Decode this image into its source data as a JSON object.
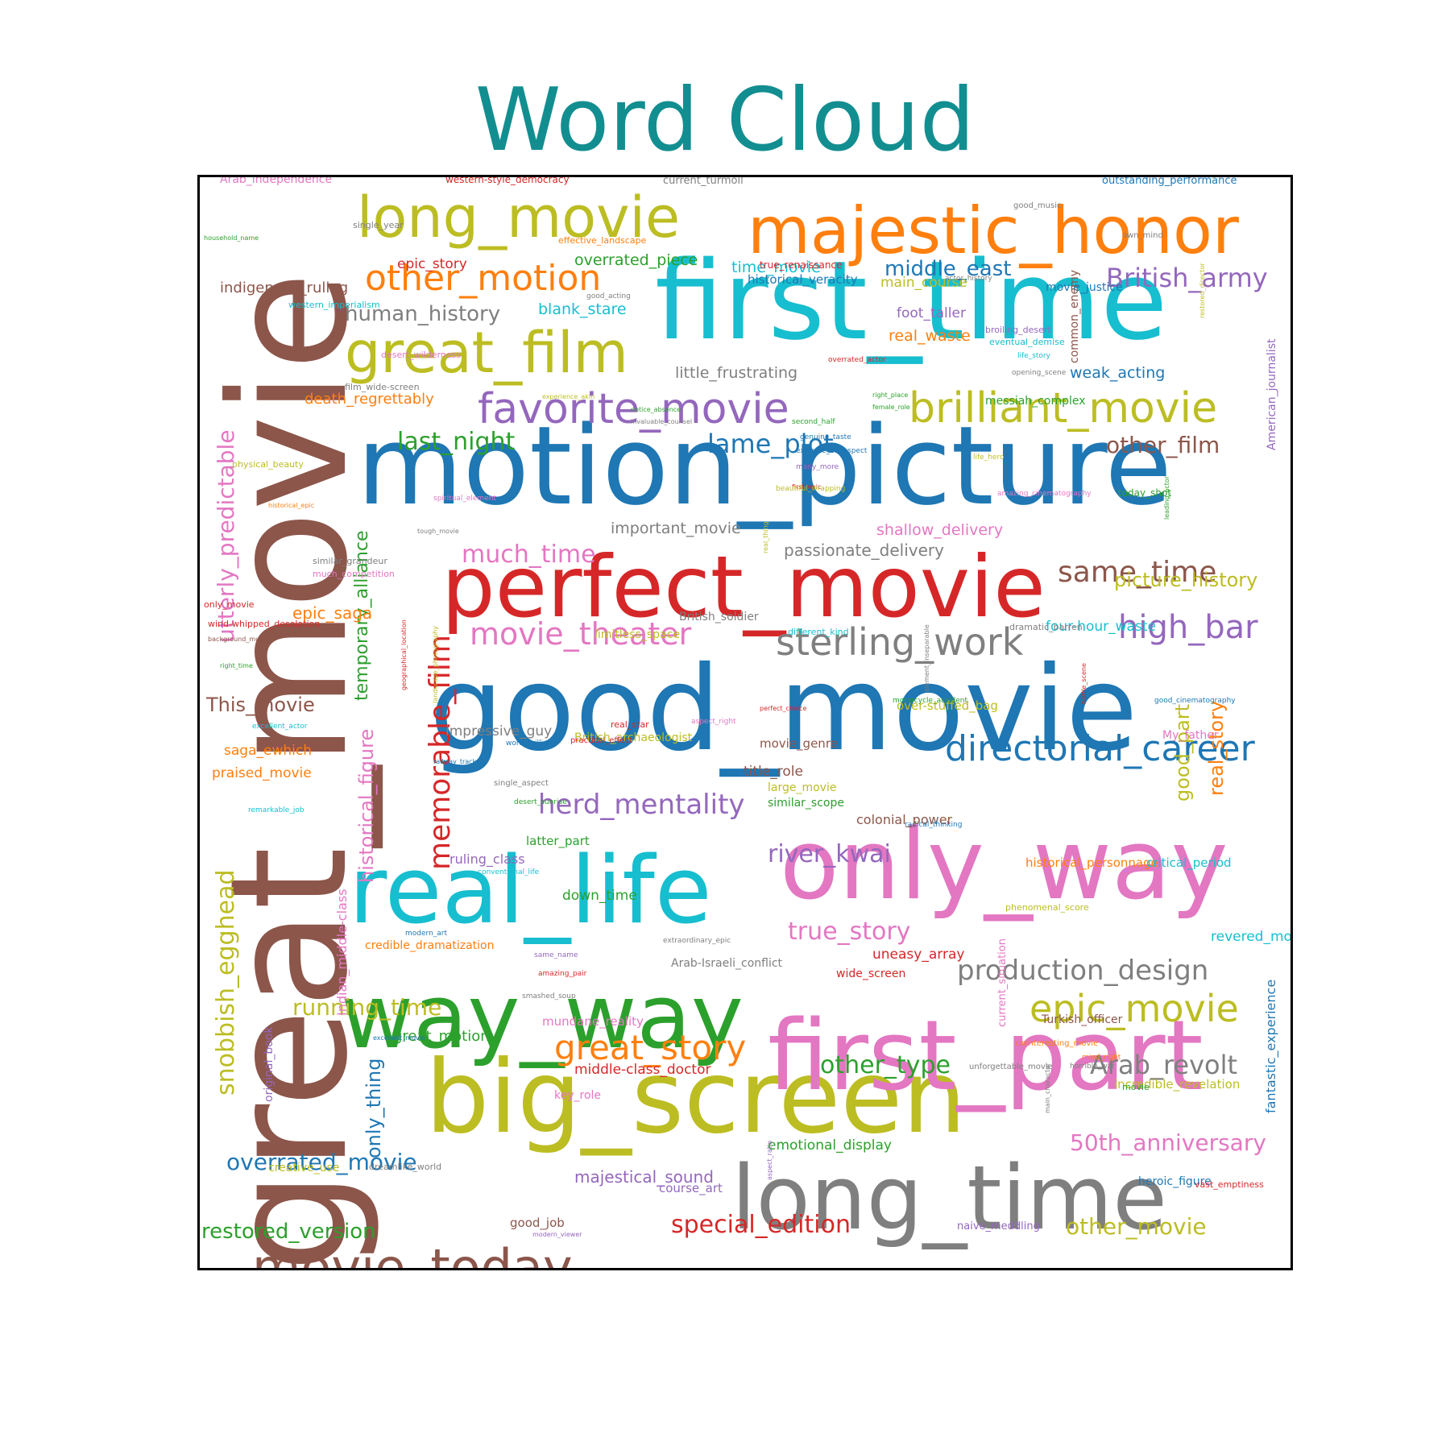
{
  "title": "Word Cloud",
  "colors": {
    "title": "#128E90",
    "frame": "#000000",
    "palette": {
      "blue": "#1F77B4",
      "orange": "#FF7F0E",
      "green": "#2CA02C",
      "red": "#D62728",
      "purple": "#9467BD",
      "brown": "#8C564B",
      "pink": "#E377C2",
      "gray": "#7F7F7F",
      "olive": "#BCBD22",
      "cyan": "#17BECF"
    }
  },
  "chart_data": {
    "type": "word_cloud",
    "words": [
      {
        "text": "great_movie",
        "color": "brown"
      },
      {
        "text": "motion_picture",
        "color": "blue"
      },
      {
        "text": "good_movie",
        "color": "blue"
      },
      {
        "text": "first_time",
        "color": "cyan"
      },
      {
        "text": "perfect_movie",
        "color": "red"
      },
      {
        "text": "big_screen",
        "color": "olive"
      },
      {
        "text": "only_way",
        "color": "pink"
      },
      {
        "text": "first_part",
        "color": "pink"
      },
      {
        "text": "real_life",
        "color": "cyan"
      },
      {
        "text": "way_way",
        "color": "green"
      },
      {
        "text": "long_time",
        "color": "gray"
      },
      {
        "text": "majestic_honor",
        "color": "orange"
      },
      {
        "text": "long_movie",
        "color": "olive"
      },
      {
        "text": "great_film",
        "color": "olive"
      },
      {
        "text": "favorite_movie",
        "color": "purple"
      },
      {
        "text": "brilliant_movie",
        "color": "olive"
      },
      {
        "text": "movie_today",
        "color": "brown"
      },
      {
        "text": "directorial_career",
        "color": "blue"
      },
      {
        "text": "other_motion",
        "color": "orange"
      },
      {
        "text": "sterling_work",
        "color": "gray"
      },
      {
        "text": "movie_theater",
        "color": "pink"
      },
      {
        "text": "great_story",
        "color": "orange"
      },
      {
        "text": "epic_movie",
        "color": "olive"
      },
      {
        "text": "memorable_film",
        "color": "red"
      },
      {
        "text": "production_design",
        "color": "gray"
      },
      {
        "text": "snobbish_egghead",
        "color": "olive"
      },
      {
        "text": "utterly_predictable",
        "color": "pink"
      },
      {
        "text": "high_bar",
        "color": "purple"
      },
      {
        "text": "same_time",
        "color": "brown"
      },
      {
        "text": "herd_mentality",
        "color": "purple"
      },
      {
        "text": "lame_plot",
        "color": "blue"
      },
      {
        "text": "British_army",
        "color": "purple"
      },
      {
        "text": "Arab_revolt",
        "color": "gray"
      },
      {
        "text": "other_film",
        "color": "brown"
      },
      {
        "text": "much_time",
        "color": "pink"
      },
      {
        "text": "running_time",
        "color": "olive"
      },
      {
        "text": "true_story",
        "color": "pink"
      },
      {
        "text": "other_type",
        "color": "green"
      },
      {
        "text": "50th_anniversary",
        "color": "pink"
      },
      {
        "text": "overrated_movie",
        "color": "blue"
      },
      {
        "text": "special_edition",
        "color": "red"
      },
      {
        "text": "other_movie",
        "color": "olive"
      },
      {
        "text": "restored_version",
        "color": "green"
      },
      {
        "text": "last_night",
        "color": "green"
      },
      {
        "text": "middle_east",
        "color": "blue"
      },
      {
        "text": "human_history",
        "color": "gray"
      },
      {
        "text": "river_kwai",
        "color": "purple"
      },
      {
        "text": "picture_history",
        "color": "olive"
      },
      {
        "text": "good_part",
        "color": "olive"
      },
      {
        "text": "real_story",
        "color": "orange"
      },
      {
        "text": "historical_figure",
        "color": "pink"
      },
      {
        "text": "temporary_alliance",
        "color": "green"
      },
      {
        "text": "This_movie",
        "color": "brown"
      },
      {
        "text": "only_thing",
        "color": "blue"
      },
      {
        "text": "majestical_sound",
        "color": "purple"
      },
      {
        "text": "epic_saga",
        "color": "orange"
      },
      {
        "text": "blank_stare",
        "color": "cyan"
      },
      {
        "text": "time_movie",
        "color": "cyan"
      },
      {
        "text": "overrated_piece",
        "color": "green"
      },
      {
        "text": "important_movie",
        "color": "gray"
      },
      {
        "text": "passionate_delivery",
        "color": "gray"
      },
      {
        "text": "shallow_delivery",
        "color": "pink"
      },
      {
        "text": "weak_acting",
        "color": "blue"
      },
      {
        "text": "real_waste",
        "color": "orange"
      },
      {
        "text": "main_course",
        "color": "olive"
      },
      {
        "text": "foot_taller",
        "color": "purple"
      },
      {
        "text": "little_frustrating",
        "color": "gray"
      },
      {
        "text": "death_regrettably",
        "color": "orange"
      },
      {
        "text": "four-hour_waste",
        "color": "cyan"
      },
      {
        "text": "down_time",
        "color": "green"
      },
      {
        "text": "great_motion",
        "color": "green"
      },
      {
        "text": "middle-class_doctor",
        "color": "red"
      },
      {
        "text": "emotional_display",
        "color": "green"
      },
      {
        "text": "movie_justice",
        "color": "blue"
      },
      {
        "text": "historical_veracity",
        "color": "blue"
      },
      {
        "text": "indigenous_ruling",
        "color": "brown"
      },
      {
        "text": "epic_story",
        "color": "red"
      },
      {
        "text": "saga_ewhich",
        "color": "orange"
      },
      {
        "text": "praised_movie",
        "color": "orange"
      },
      {
        "text": "impressive_guy",
        "color": "gray"
      },
      {
        "text": "title_role",
        "color": "brown"
      },
      {
        "text": "colonial_power",
        "color": "brown"
      },
      {
        "text": "ruling_class",
        "color": "purple"
      },
      {
        "text": "latter_part",
        "color": "green"
      },
      {
        "text": "credible_dramatization",
        "color": "orange"
      },
      {
        "text": "uneasy_array",
        "color": "red"
      },
      {
        "text": "revered_movie",
        "color": "cyan"
      },
      {
        "text": "Indian_middle-class",
        "color": "pink"
      },
      {
        "text": "fantastic_experience",
        "color": "blue"
      },
      {
        "text": "American_journalist",
        "color": "purple"
      },
      {
        "text": "common_enemy",
        "color": "brown"
      },
      {
        "text": "mundane_reality",
        "color": "pink"
      },
      {
        "text": "original_book",
        "color": "purple"
      },
      {
        "text": "course_art",
        "color": "purple"
      },
      {
        "text": "Arab-Israeli_conflict",
        "color": "gray"
      },
      {
        "text": "Turkish_officer",
        "color": "brown"
      },
      {
        "text": "heroic_figure",
        "color": "blue"
      },
      {
        "text": "movie_genre",
        "color": "brown"
      },
      {
        "text": "large_movie",
        "color": "olive"
      },
      {
        "text": "similar_scope",
        "color": "green"
      },
      {
        "text": "historical_personnage",
        "color": "orange"
      },
      {
        "text": "critical_period",
        "color": "cyan"
      },
      {
        "text": "incredible_revelation",
        "color": "olive"
      },
      {
        "text": "key_role",
        "color": "pink"
      },
      {
        "text": "wide_screen",
        "color": "red"
      },
      {
        "text": "creative_use",
        "color": "olive"
      },
      {
        "text": "good_job",
        "color": "brown"
      },
      {
        "text": "naive_meddling",
        "color": "purple"
      },
      {
        "text": "current_situation",
        "color": "pink"
      },
      {
        "text": "My_father",
        "color": "pink"
      },
      {
        "text": "over-stuffed_bag",
        "color": "olive"
      },
      {
        "text": "British_archaeologist",
        "color": "olive"
      },
      {
        "text": "British_soldier",
        "color": "gray"
      },
      {
        "text": "limitless_space",
        "color": "olive"
      },
      {
        "text": "Arab_independence",
        "color": "pink"
      },
      {
        "text": "western-style_democracy",
        "color": "red"
      },
      {
        "text": "current_turmoil",
        "color": "gray"
      },
      {
        "text": "outstanding_performance",
        "color": "blue"
      },
      {
        "text": "single_year",
        "color": "gray"
      },
      {
        "text": "effective_landscape",
        "color": "orange"
      },
      {
        "text": "true_renaissance",
        "color": "red"
      },
      {
        "text": "western_imperialism",
        "color": "cyan"
      },
      {
        "text": "desert_wilderness",
        "color": "pink"
      },
      {
        "text": "film_wide-screen",
        "color": "gray"
      },
      {
        "text": "physical_beauty",
        "color": "olive"
      },
      {
        "text": "messiah_complex",
        "color": "green"
      },
      {
        "text": "eventual_demise",
        "color": "cyan"
      },
      {
        "text": "broiling_desert",
        "color": "purple"
      },
      {
        "text": "today_shot",
        "color": "green"
      },
      {
        "text": "similar_grandeur",
        "color": "gray"
      },
      {
        "text": "much_competition",
        "color": "pink"
      },
      {
        "text": "only_movie",
        "color": "red"
      },
      {
        "text": "wind-whipped_desolation",
        "color": "red"
      },
      {
        "text": "dramatic_barren",
        "color": "gray"
      },
      {
        "text": "different_kind",
        "color": "cyan"
      },
      {
        "text": "real_star",
        "color": "red"
      },
      {
        "text": "practical_effect",
        "color": "red"
      },
      {
        "text": "phenomenal_score",
        "color": "olive"
      },
      {
        "text": "dreamlike_world",
        "color": "gray"
      },
      {
        "text": "uninteresting_movie",
        "color": "orange"
      },
      {
        "text": "unforgettable_movie",
        "color": "gray"
      },
      {
        "text": "movie",
        "color": "green"
      },
      {
        "text": "vast_emptiness",
        "color": "red"
      },
      {
        "text": "good_music",
        "color": "gray"
      },
      {
        "text": "own_mind",
        "color": "gray"
      },
      {
        "text": "actor_history",
        "color": "gray"
      },
      {
        "text": "good_acting",
        "color": "gray"
      },
      {
        "text": "overrated_actor",
        "color": "red"
      },
      {
        "text": "life_story",
        "color": "cyan"
      },
      {
        "text": "opening_scene",
        "color": "gray"
      },
      {
        "text": "restored_director",
        "color": "olive"
      },
      {
        "text": "experience_akin",
        "color": "olive"
      },
      {
        "text": "notice_absence",
        "color": "green"
      },
      {
        "text": "invaluable_counsel",
        "color": "gray"
      },
      {
        "text": "right_place",
        "color": "green"
      },
      {
        "text": "female_role",
        "color": "green"
      },
      {
        "text": "second_half",
        "color": "green"
      },
      {
        "text": "extreme_disrespect",
        "color": "blue"
      },
      {
        "text": "genuine_taste",
        "color": "blue"
      },
      {
        "text": "life_hero",
        "color": "olive"
      },
      {
        "text": "many_more",
        "color": "purple"
      },
      {
        "text": "first_epic",
        "color": "red"
      },
      {
        "text": "beautiful_wrapping",
        "color": "olive"
      },
      {
        "text": "amazing_cinematography",
        "color": "pink"
      },
      {
        "text": "spiritual_element",
        "color": "pink"
      },
      {
        "text": "leading_actor",
        "color": "green"
      },
      {
        "text": "historical_epic",
        "color": "orange"
      },
      {
        "text": "tough_movie",
        "color": "gray"
      },
      {
        "text": "real_thing",
        "color": "olive"
      },
      {
        "text": "background_music",
        "color": "brown"
      },
      {
        "text": "right_time",
        "color": "green"
      },
      {
        "text": "geographical_location",
        "color": "red"
      },
      {
        "text": "landscape_photography",
        "color": "olive"
      },
      {
        "text": "element_inseparable",
        "color": "gray"
      },
      {
        "text": "battle_scene",
        "color": "red"
      },
      {
        "text": "motorcycle_accident",
        "color": "green"
      },
      {
        "text": "good_cinematography",
        "color": "blue"
      },
      {
        "text": "excellent_actor",
        "color": "cyan"
      },
      {
        "text": "perfect_choice",
        "color": "red"
      },
      {
        "text": "aspect_right",
        "color": "pink"
      },
      {
        "text": "word_brilliant",
        "color": "blue"
      },
      {
        "text": "railway_track",
        "color": "blue"
      },
      {
        "text": "single_aspect",
        "color": "gray"
      },
      {
        "text": "desert_sunrise",
        "color": "green"
      },
      {
        "text": "remarkable_job",
        "color": "cyan"
      },
      {
        "text": "radical_thinking",
        "color": "blue"
      },
      {
        "text": "main_character",
        "color": "gray"
      },
      {
        "text": "conventional_life",
        "color": "cyan"
      },
      {
        "text": "modern_art",
        "color": "blue"
      },
      {
        "text": "extraordinary_epic",
        "color": "gray"
      },
      {
        "text": "same_name",
        "color": "purple"
      },
      {
        "text": "amazing_pair",
        "color": "red"
      },
      {
        "text": "smashed_soup",
        "color": "gray"
      },
      {
        "text": "mind_right",
        "color": "orange"
      },
      {
        "text": "horrible_war",
        "color": "gray"
      },
      {
        "text": "excellent_movie",
        "color": "blue"
      },
      {
        "text": "aspect_ratio",
        "color": "purple"
      },
      {
        "text": "modern_viewer",
        "color": "purple"
      },
      {
        "text": "household_name",
        "color": "green"
      },
      {
        "text": "n",
        "color": "red"
      }
    ]
  }
}
